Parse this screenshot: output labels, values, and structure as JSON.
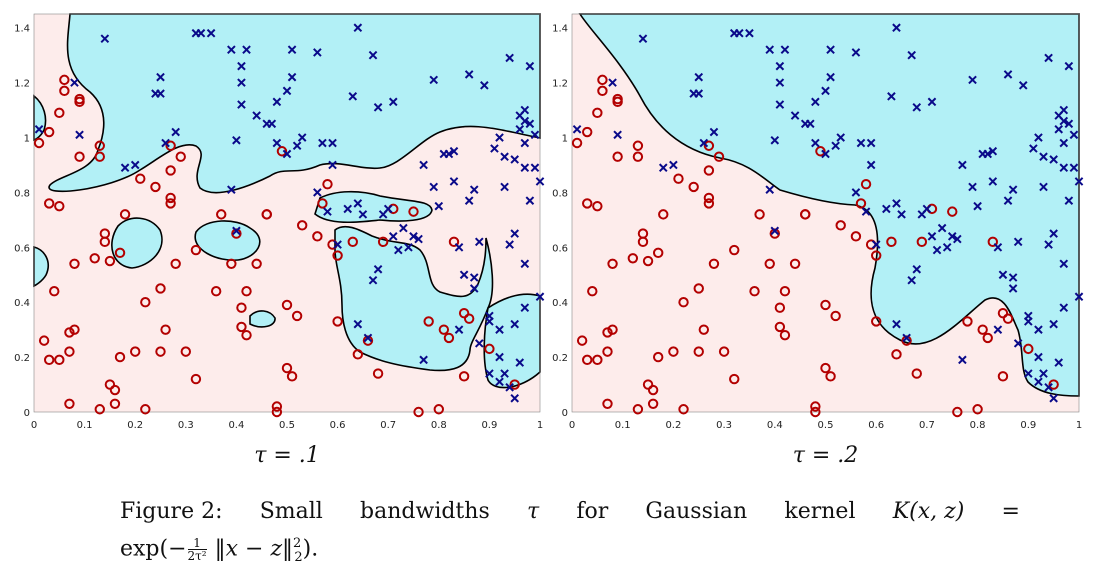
{
  "colors": {
    "class_neg_region": "#fdeceb",
    "class_pos_region": "#b2f0f6",
    "o_marker": "#b30000",
    "x_marker": "#0a0a8a",
    "boundary": "#000000"
  },
  "chart_data": [
    {
      "type": "scatter",
      "panel_label": "τ = .1",
      "xlim": [
        0,
        1
      ],
      "ylim": [
        0,
        1.45
      ],
      "xticks": [
        "0",
        "0.1",
        "0.2",
        "0.3",
        "0.4",
        "0.5",
        "0.6",
        "0.7",
        "0.8",
        "0.9",
        "1"
      ],
      "yticks": [
        "0",
        "0.2",
        "0.4",
        "0.6",
        "0.8",
        "1",
        "1.2",
        "1.4"
      ],
      "grid": false,
      "series": [
        {
          "marker": "o",
          "points": [
            [
              0.01,
              0.98
            ],
            [
              0.02,
              0.26
            ],
            [
              0.03,
              0.19
            ],
            [
              0.03,
              0.76
            ],
            [
              0.03,
              1.02
            ],
            [
              0.04,
              0.44
            ],
            [
              0.05,
              0.19
            ],
            [
              0.05,
              0.75
            ],
            [
              0.05,
              1.09
            ],
            [
              0.06,
              1.17
            ],
            [
              0.06,
              1.21
            ],
            [
              0.07,
              0.03
            ],
            [
              0.07,
              0.22
            ],
            [
              0.07,
              0.29
            ],
            [
              0.08,
              0.54
            ],
            [
              0.08,
              0.3
            ],
            [
              0.09,
              0.93
            ],
            [
              0.09,
              1.13
            ],
            [
              0.09,
              1.14
            ],
            [
              0.13,
              0.01
            ],
            [
              0.12,
              0.56
            ],
            [
              0.13,
              0.93
            ],
            [
              0.13,
              0.97
            ],
            [
              0.14,
              0.62
            ],
            [
              0.14,
              0.65
            ],
            [
              0.15,
              0.1
            ],
            [
              0.15,
              0.55
            ],
            [
              0.16,
              0.08
            ],
            [
              0.16,
              0.03
            ],
            [
              0.17,
              0.2
            ],
            [
              0.17,
              0.58
            ],
            [
              0.18,
              0.72
            ],
            [
              0.2,
              0.22
            ],
            [
              0.21,
              0.85
            ],
            [
              0.22,
              0.01
            ],
            [
              0.22,
              0.4
            ],
            [
              0.24,
              0.82
            ],
            [
              0.25,
              0.22
            ],
            [
              0.25,
              0.45
            ],
            [
              0.26,
              0.3
            ],
            [
              0.27,
              0.76
            ],
            [
              0.27,
              0.78
            ],
            [
              0.27,
              0.88
            ],
            [
              0.27,
              0.97
            ],
            [
              0.28,
              0.54
            ],
            [
              0.29,
              0.93
            ],
            [
              0.3,
              0.22
            ],
            [
              0.32,
              0.12
            ],
            [
              0.32,
              0.59
            ],
            [
              0.36,
              0.44
            ],
            [
              0.37,
              0.72
            ],
            [
              0.39,
              0.54
            ],
            [
              0.4,
              0.65
            ],
            [
              0.41,
              0.31
            ],
            [
              0.41,
              0.38
            ],
            [
              0.42,
              0.28
            ],
            [
              0.42,
              0.44
            ],
            [
              0.44,
              0.54
            ],
            [
              0.46,
              0.72
            ],
            [
              0.46,
              0.72
            ],
            [
              0.48,
              0.02
            ],
            [
              0.48,
              0.0
            ],
            [
              0.49,
              0.95
            ],
            [
              0.5,
              0.16
            ],
            [
              0.5,
              0.39
            ],
            [
              0.51,
              0.13
            ],
            [
              0.52,
              0.35
            ],
            [
              0.53,
              0.68
            ],
            [
              0.56,
              0.64
            ],
            [
              0.57,
              0.76
            ],
            [
              0.58,
              0.83
            ],
            [
              0.59,
              0.61
            ],
            [
              0.6,
              0.57
            ],
            [
              0.6,
              0.33
            ],
            [
              0.63,
              0.62
            ],
            [
              0.64,
              0.21
            ],
            [
              0.66,
              0.26
            ],
            [
              0.68,
              0.14
            ],
            [
              0.69,
              0.62
            ],
            [
              0.71,
              0.74
            ],
            [
              0.75,
              0.73
            ],
            [
              0.76,
              0.0
            ],
            [
              0.78,
              0.33
            ],
            [
              0.8,
              0.01
            ],
            [
              0.81,
              0.3
            ],
            [
              0.82,
              0.27
            ],
            [
              0.83,
              0.62
            ],
            [
              0.85,
              0.13
            ],
            [
              0.85,
              0.36
            ],
            [
              0.86,
              0.34
            ],
            [
              0.9,
              0.23
            ],
            [
              0.95,
              0.1
            ]
          ]
        },
        {
          "marker": "x",
          "points": [
            [
              0.01,
              1.03
            ],
            [
              0.08,
              1.2
            ],
            [
              0.09,
              1.01
            ],
            [
              0.14,
              1.36
            ],
            [
              0.18,
              0.89
            ],
            [
              0.2,
              0.9
            ],
            [
              0.24,
              1.16
            ],
            [
              0.25,
              1.16
            ],
            [
              0.25,
              1.22
            ],
            [
              0.26,
              0.98
            ],
            [
              0.28,
              1.02
            ],
            [
              0.32,
              1.38
            ],
            [
              0.33,
              1.38
            ],
            [
              0.35,
              1.38
            ],
            [
              0.39,
              1.32
            ],
            [
              0.39,
              0.81
            ],
            [
              0.4,
              0.99
            ],
            [
              0.4,
              0.66
            ],
            [
              0.41,
              1.26
            ],
            [
              0.41,
              1.12
            ],
            [
              0.41,
              1.2
            ],
            [
              0.42,
              1.32
            ],
            [
              0.44,
              1.08
            ],
            [
              0.46,
              1.05
            ],
            [
              0.47,
              1.05
            ],
            [
              0.48,
              1.13
            ],
            [
              0.48,
              0.98
            ],
            [
              0.5,
              0.94
            ],
            [
              0.5,
              1.17
            ],
            [
              0.51,
              1.32
            ],
            [
              0.51,
              1.22
            ],
            [
              0.52,
              0.97
            ],
            [
              0.53,
              1.0
            ],
            [
              0.56,
              1.31
            ],
            [
              0.57,
              0.98
            ],
            [
              0.59,
              0.98
            ],
            [
              0.59,
              0.9
            ],
            [
              0.63,
              1.15
            ],
            [
              0.64,
              1.4
            ],
            [
              0.64,
              0.76
            ],
            [
              0.65,
              0.72
            ],
            [
              0.67,
              1.3
            ],
            [
              0.67,
              0.48
            ],
            [
              0.68,
              0.52
            ],
            [
              0.68,
              1.11
            ],
            [
              0.69,
              0.72
            ],
            [
              0.7,
              0.74
            ],
            [
              0.71,
              1.13
            ],
            [
              0.71,
              0.64
            ],
            [
              0.72,
              0.59
            ],
            [
              0.73,
              0.67
            ],
            [
              0.74,
              0.6
            ],
            [
              0.75,
              0.64
            ],
            [
              0.76,
              0.63
            ],
            [
              0.77,
              0.9
            ],
            [
              0.77,
              0.19
            ],
            [
              0.79,
              0.82
            ],
            [
              0.8,
              0.75
            ],
            [
              0.81,
              0.94
            ],
            [
              0.83,
              0.84
            ],
            [
              0.83,
              0.95
            ],
            [
              0.84,
              0.6
            ],
            [
              0.84,
              0.3
            ],
            [
              0.86,
              0.77
            ],
            [
              0.87,
              0.81
            ],
            [
              0.87,
              0.45
            ],
            [
              0.87,
              0.49
            ],
            [
              0.9,
              0.35
            ],
            [
              0.91,
              0.96
            ],
            [
              0.92,
              1.0
            ],
            [
              0.93,
              0.82
            ],
            [
              0.94,
              0.61
            ],
            [
              0.95,
              0.92
            ],
            [
              0.96,
              1.08
            ],
            [
              0.96,
              1.03
            ],
            [
              0.97,
              0.89
            ],
            [
              0.97,
              1.06
            ],
            [
              0.98,
              0.77
            ],
            [
              0.98,
              1.26
            ],
            [
              0.99,
              1.01
            ],
            [
              0.99,
              0.89
            ],
            [
              1.0,
              0.84
            ],
            [
              0.92,
              0.11
            ],
            [
              0.93,
              0.14
            ],
            [
              0.94,
              0.09
            ],
            [
              0.95,
              0.05
            ],
            [
              0.9,
              0.33
            ],
            [
              0.88,
              0.62
            ],
            [
              0.85,
              0.5
            ],
            [
              0.86,
              1.23
            ],
            [
              0.89,
              1.19
            ],
            [
              0.94,
              1.29
            ],
            [
              0.79,
              1.21
            ],
            [
              0.82,
              0.94
            ],
            [
              0.6,
              0.61
            ],
            [
              0.62,
              0.74
            ],
            [
              0.64,
              0.32
            ],
            [
              0.66,
              0.27
            ],
            [
              0.56,
              0.8
            ],
            [
              0.58,
              0.73
            ],
            [
              0.88,
              0.25
            ],
            [
              0.9,
              0.14
            ],
            [
              0.92,
              0.3
            ],
            [
              0.95,
              0.32
            ],
            [
              0.97,
              0.38
            ],
            [
              1.0,
              0.42
            ],
            [
              0.96,
              0.18
            ],
            [
              0.92,
              0.2
            ],
            [
              0.97,
              0.54
            ],
            [
              0.95,
              0.65
            ],
            [
              0.93,
              0.93
            ],
            [
              0.97,
              0.98
            ],
            [
              0.98,
              1.05
            ],
            [
              0.97,
              1.1
            ]
          ]
        }
      ]
    },
    {
      "type": "scatter",
      "panel_label": "τ = .2",
      "xlim": [
        0,
        1
      ],
      "ylim": [
        0,
        1.45
      ],
      "xticks": [
        "0",
        "0.1",
        "0.2",
        "0.3",
        "0.4",
        "0.5",
        "0.6",
        "0.7",
        "0.8",
        "0.9",
        "1"
      ],
      "yticks": [
        "0",
        "0.2",
        "0.4",
        "0.6",
        "0.8",
        "1",
        "1.2",
        "1.4"
      ],
      "grid": false,
      "series": [
        {
          "marker": "o",
          "points": "same as panel 1"
        },
        {
          "marker": "x",
          "points": "same as panel 1"
        }
      ]
    }
  ],
  "caption": {
    "prefix": "Figure 2:",
    "words": [
      "Small",
      "bandwidths",
      "τ",
      "for",
      "Gaussian",
      "kernel",
      "K(x, z)",
      "="
    ],
    "line2_a": "exp(−",
    "frac_num": "1",
    "frac_den": "2τ²",
    "line2_b": " ‖x − z‖",
    "line2_sup": "2",
    "line2_sub": "2",
    "line2_c": ")."
  }
}
